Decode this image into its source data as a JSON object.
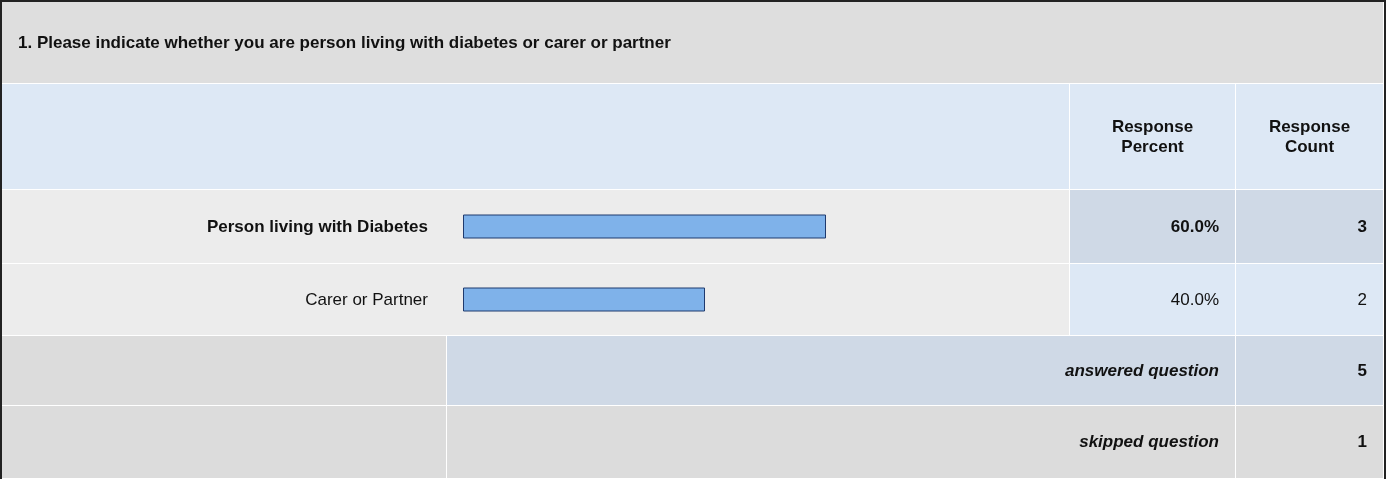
{
  "chart_data": {
    "type": "bar",
    "orientation": "horizontal",
    "title": "1. Please indicate whether you are person living with diabetes or carer or partner",
    "categories": [
      "Person living with Diabetes",
      "Carer or Partner"
    ],
    "values": [
      60,
      40
    ],
    "value_labels": [
      "60.0%",
      "40.0%"
    ],
    "color": "#7fb2ea",
    "xlim": [
      0,
      100
    ],
    "tick_labels": "y",
    "annotations": [
      "Response Percent",
      "Response Count",
      "3",
      "2",
      "answered question",
      "5",
      "skipped question",
      "1"
    ]
  }
}
